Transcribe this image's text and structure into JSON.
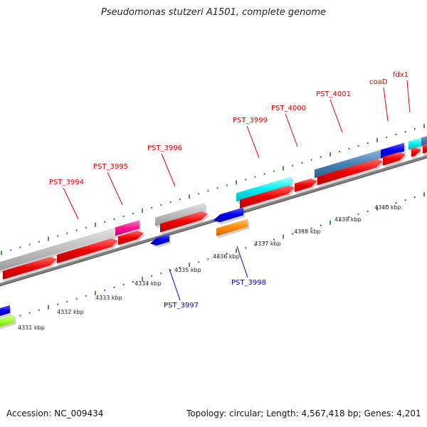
{
  "title": "Pseudomonas stutzeri A1501, complete genome",
  "footer": {
    "accession": "Accession: NC_009434",
    "summary": "Topology: circular; Length: 4,567,418 bp; Genes: 4,201"
  },
  "colors": {
    "backbone": "#808080",
    "tick": "#1a7a1a",
    "cds_forward": "#ff0000",
    "cds_reverse": "#0000ff",
    "feature_gray": "#b8b8b8",
    "feature_pink": "#ff1493",
    "feature_cyan": "#00e5ee",
    "feature_steelblue": "#4682b4",
    "feature_orange": "#ff8c00",
    "feature_lime": "#9aff2a",
    "label_forward": "#e00000",
    "label_reverse": "#0000cc"
  },
  "scale_labels": [
    "4331 kbp",
    "4332 kbp",
    "4333 kbp",
    "4334 kbp",
    "4335 kbp",
    "4336 kbp",
    "4337 kbp",
    "4338 kbp",
    "4339 kbp",
    "4340 kbp"
  ],
  "gene_labels_forward": [
    "PST_3994",
    "PST_3995",
    "PST_3996",
    "PST_3999",
    "PST_4000",
    "PST_4001",
    "coaD",
    "fdx1"
  ],
  "gene_labels_reverse": [
    "PST_3997",
    "PST_3998"
  ]
}
